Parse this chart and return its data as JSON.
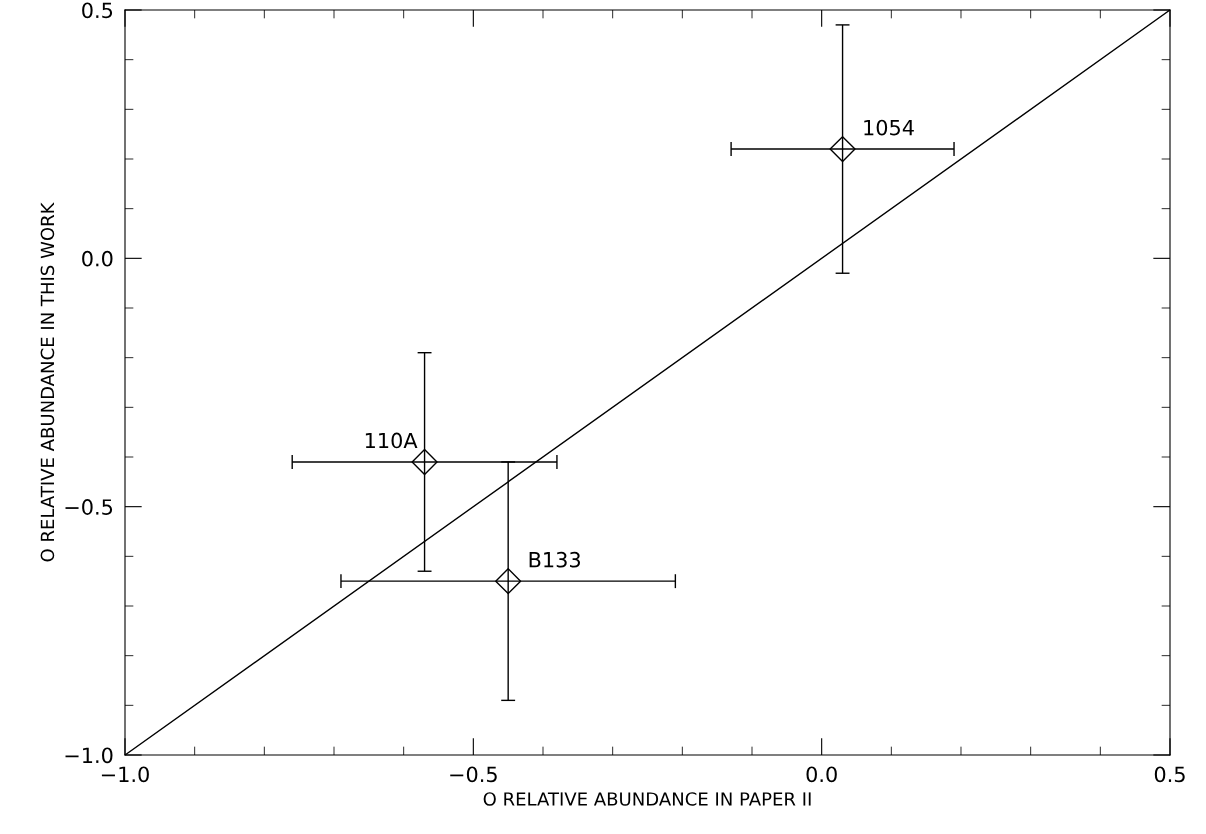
{
  "chart_data": {
    "type": "scatter",
    "xlabel": "O RELATIVE ABUNDANCE IN PAPER II",
    "ylabel": "O RELATIVE ABUNDANCE IN THIS WORK",
    "xlim": [
      -1.0,
      0.5
    ],
    "ylim": [
      -1.0,
      0.5
    ],
    "xticks": [
      {
        "value": -1.0,
        "label": "−1.0"
      },
      {
        "value": -0.9,
        "label": null
      },
      {
        "value": -0.8,
        "label": null
      },
      {
        "value": -0.7,
        "label": null
      },
      {
        "value": -0.6,
        "label": null
      },
      {
        "value": -0.5,
        "label": "−0.5"
      },
      {
        "value": -0.4,
        "label": null
      },
      {
        "value": -0.3,
        "label": null
      },
      {
        "value": -0.2,
        "label": null
      },
      {
        "value": -0.1,
        "label": null
      },
      {
        "value": 0.0,
        "label": "0.0"
      },
      {
        "value": 0.1,
        "label": null
      },
      {
        "value": 0.2,
        "label": null
      },
      {
        "value": 0.3,
        "label": null
      },
      {
        "value": 0.4,
        "label": null
      },
      {
        "value": 0.5,
        "label": "0.5"
      }
    ],
    "yticks": [
      {
        "value": -1.0,
        "label": "−1.0"
      },
      {
        "value": -0.9,
        "label": null
      },
      {
        "value": -0.8,
        "label": null
      },
      {
        "value": -0.7,
        "label": null
      },
      {
        "value": -0.6,
        "label": null
      },
      {
        "value": -0.5,
        "label": "−0.5"
      },
      {
        "value": -0.4,
        "label": null
      },
      {
        "value": -0.3,
        "label": null
      },
      {
        "value": -0.2,
        "label": null
      },
      {
        "value": -0.1,
        "label": null
      },
      {
        "value": 0.0,
        "label": "0.0"
      },
      {
        "value": 0.1,
        "label": null
      },
      {
        "value": 0.2,
        "label": null
      },
      {
        "value": 0.3,
        "label": null
      },
      {
        "value": 0.4,
        "label": null
      },
      {
        "value": 0.5,
        "label": "0.5"
      }
    ],
    "grid": false,
    "legend": false,
    "series": [
      {
        "color": "#000000",
        "marker": "diamond",
        "x": [
          0.03,
          -0.57,
          -0.45
        ],
        "values": [
          0.22,
          -0.41,
          -0.65
        ],
        "errors": [
          0.25,
          0.22,
          0.24
        ],
        "xerrors": [
          0.16,
          0.19,
          0.24
        ]
      },
      {
        "type": "line",
        "color": "#000000",
        "line_style": "solid",
        "marker": "none",
        "x": [
          -1.0,
          0.5
        ],
        "values": [
          -1.0,
          0.5
        ]
      }
    ],
    "annotations": [
      {
        "text": "1054",
        "x": 0.03,
        "y": 0.22
      },
      {
        "text": "110A",
        "x": -0.57,
        "y": -0.41
      },
      {
        "text": "B133",
        "x": -0.45,
        "y": -0.65
      }
    ]
  }
}
